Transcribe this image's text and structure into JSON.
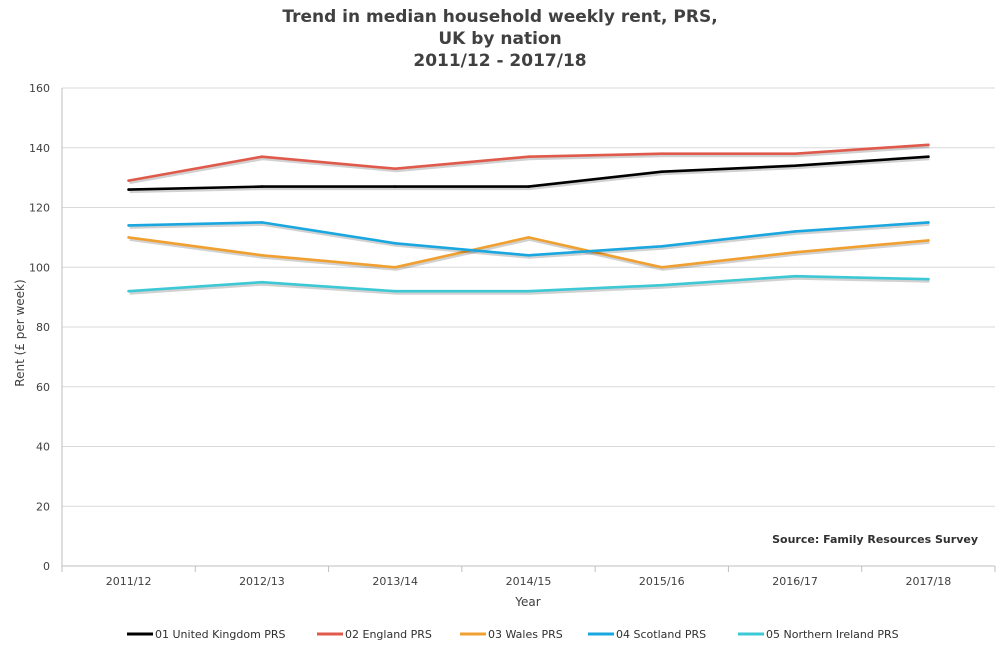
{
  "chart_data": {
    "type": "line",
    "title": [
      "Trend in median household weekly rent, PRS,",
      "UK by nation",
      "2011/12 - 2017/18"
    ],
    "xlabel": "Year",
    "ylabel": "Rent (£ per week)",
    "categories": [
      "2011/12",
      "2012/13",
      "2013/14",
      "2014/15",
      "2015/16",
      "2016/17",
      "2017/18"
    ],
    "ylim": [
      0,
      160
    ],
    "yticks": [
      0,
      20,
      40,
      60,
      80,
      100,
      120,
      140,
      160
    ],
    "grid": "horizontal",
    "legend_position": "bottom",
    "source": "Source: Family Resources Survey",
    "series": [
      {
        "name": "01 United Kingdom PRS",
        "color": "#000000",
        "values": [
          126,
          127,
          127,
          127,
          132,
          134,
          137
        ]
      },
      {
        "name": "02 England PRS",
        "color": "#e05a4b",
        "values": [
          129,
          137,
          133,
          137,
          138,
          138,
          141
        ]
      },
      {
        "name": "03 Wales PRS",
        "color": "#f0a030",
        "values": [
          110,
          104,
          100,
          110,
          100,
          105,
          109
        ]
      },
      {
        "name": "04 Scotland PRS",
        "color": "#1aa7df",
        "values": [
          114,
          115,
          108,
          104,
          107,
          112,
          115
        ]
      },
      {
        "name": "05 Northern Ireland PRS",
        "color": "#3cc8d4",
        "values": [
          92,
          95,
          92,
          92,
          94,
          97,
          96
        ]
      }
    ]
  }
}
